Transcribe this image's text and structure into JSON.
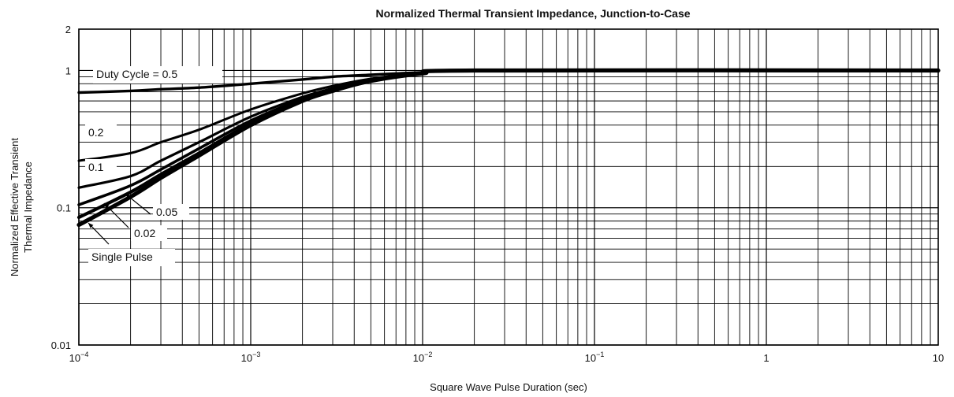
{
  "chart_data": {
    "type": "line",
    "title": "Normalized Thermal Transient Impedance, Junction-to-Case",
    "xlabel": "Square Wave Pulse Duration (sec)",
    "ylabel": [
      "Normalized Effective Transient",
      "Thermal Impedance"
    ],
    "x_scale": "log",
    "y_scale": "log",
    "xlim": [
      0.0001,
      10
    ],
    "ylim": [
      0.01,
      2
    ],
    "grid": true,
    "x_ticks": [
      {
        "value": 0.0001,
        "base": "10",
        "exp": "−4"
      },
      {
        "value": 0.001,
        "base": "10",
        "exp": "−3"
      },
      {
        "value": 0.01,
        "base": "10",
        "exp": "−2"
      },
      {
        "value": 0.1,
        "base": "10",
        "exp": "−1"
      },
      {
        "value": 1,
        "base": "1",
        "exp": ""
      },
      {
        "value": 10,
        "base": "10",
        "exp": ""
      }
    ],
    "y_ticks": [
      {
        "value": 0.01,
        "label": "0.01"
      },
      {
        "value": 0.1,
        "label": "0.1"
      },
      {
        "value": 1,
        "label": "1"
      },
      {
        "value": 2,
        "label": "2"
      }
    ],
    "series": [
      {
        "name": "Duty Cycle = 0.5",
        "x": [
          0.0001,
          0.0002,
          0.0003,
          0.0005,
          0.001,
          0.002,
          0.003,
          0.005,
          0.01,
          0.02,
          10
        ],
        "y": [
          0.69,
          0.71,
          0.73,
          0.75,
          0.8,
          0.86,
          0.9,
          0.93,
          0.97,
          1.0,
          1.0
        ]
      },
      {
        "name": "0.2",
        "x": [
          0.0001,
          0.0002,
          0.0003,
          0.0005,
          0.001,
          0.002,
          0.003,
          0.005,
          0.01,
          0.02,
          10
        ],
        "y": [
          0.22,
          0.25,
          0.3,
          0.37,
          0.52,
          0.68,
          0.77,
          0.87,
          0.96,
          1.0,
          1.0
        ]
      },
      {
        "name": "0.1",
        "x": [
          0.0001,
          0.0002,
          0.0003,
          0.0005,
          0.001,
          0.002,
          0.003,
          0.005,
          0.01,
          0.02,
          10
        ],
        "y": [
          0.14,
          0.17,
          0.22,
          0.3,
          0.46,
          0.64,
          0.74,
          0.86,
          0.96,
          1.0,
          1.0
        ]
      },
      {
        "name": "0.05",
        "x": [
          0.0001,
          0.0002,
          0.0003,
          0.0005,
          0.001,
          0.002,
          0.003,
          0.005,
          0.01,
          0.02,
          10
        ],
        "y": [
          0.105,
          0.145,
          0.19,
          0.27,
          0.43,
          0.62,
          0.73,
          0.85,
          0.95,
          1.0,
          1.0
        ]
      },
      {
        "name": "0.02",
        "x": [
          0.0001,
          0.0002,
          0.0003,
          0.0005,
          0.001,
          0.002,
          0.003,
          0.005,
          0.01,
          0.02,
          10
        ],
        "y": [
          0.085,
          0.13,
          0.175,
          0.25,
          0.41,
          0.61,
          0.72,
          0.85,
          0.95,
          1.0,
          1.0
        ]
      },
      {
        "name": "Single Pulse",
        "x": [
          0.0001,
          0.0002,
          0.0003,
          0.0005,
          0.001,
          0.002,
          0.003,
          0.005,
          0.01,
          0.02,
          10
        ],
        "y": [
          0.075,
          0.12,
          0.165,
          0.24,
          0.4,
          0.6,
          0.71,
          0.84,
          0.95,
          1.0,
          1.0
        ]
      }
    ],
    "annotations": [
      {
        "text": "Duty Cycle = 0.5",
        "series": 0
      },
      {
        "text": "0.2",
        "series": 1
      },
      {
        "text": "0.1",
        "series": 2
      },
      {
        "text": "0.05",
        "series": 3
      },
      {
        "text": "0.02",
        "series": 4
      },
      {
        "text": "Single Pulse",
        "series": 5
      }
    ]
  }
}
